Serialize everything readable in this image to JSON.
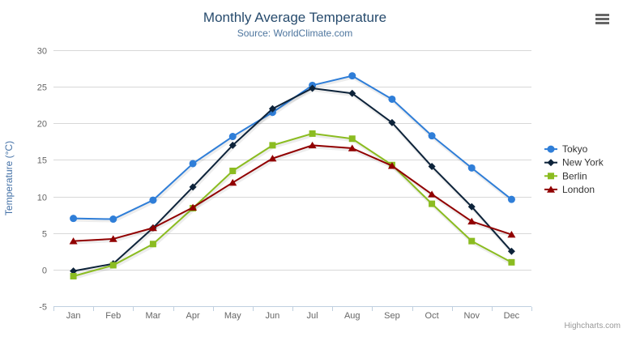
{
  "credits": "Highcharts.com",
  "export_menu": {
    "icon": "hamburger-menu-icon"
  },
  "palette": {
    "title_color": "#274b6d",
    "subtitle_color": "#4d759e",
    "axis_title_color": "#4572a7",
    "axis_label_color": "#666666",
    "legend_text_color": "#333333",
    "grid_color": "#d8d8d8",
    "axis_line_color": "#c0d0e0",
    "credits_color": "#999999"
  },
  "chart_data": {
    "type": "line",
    "title": "Monthly Average Temperature",
    "subtitle": "Source: WorldClimate.com",
    "xlabel": "",
    "ylabel": "Temperature (°C)",
    "ylim": [
      -5,
      30
    ],
    "ytick": 5,
    "grid": true,
    "legend_position": "right",
    "categories": [
      "Jan",
      "Feb",
      "Mar",
      "Apr",
      "May",
      "Jun",
      "Jul",
      "Aug",
      "Sep",
      "Oct",
      "Nov",
      "Dec"
    ],
    "series": [
      {
        "name": "Tokyo",
        "color": "#2f7ed8",
        "marker": "circle",
        "values": [
          7.0,
          6.9,
          9.5,
          14.5,
          18.2,
          21.5,
          25.2,
          26.5,
          23.3,
          18.3,
          13.9,
          9.6
        ]
      },
      {
        "name": "New York",
        "color": "#0d233a",
        "marker": "diamond",
        "values": [
          -0.2,
          0.8,
          5.7,
          11.3,
          17.0,
          22.0,
          24.8,
          24.1,
          20.1,
          14.1,
          8.6,
          2.5
        ]
      },
      {
        "name": "Berlin",
        "color": "#8bbc21",
        "marker": "square",
        "values": [
          -0.9,
          0.6,
          3.5,
          8.4,
          13.5,
          17.0,
          18.6,
          17.9,
          14.3,
          9.0,
          3.9,
          1.0
        ]
      },
      {
        "name": "London",
        "color": "#910000",
        "marker": "triangle",
        "values": [
          3.9,
          4.2,
          5.7,
          8.5,
          11.9,
          15.2,
          17.0,
          16.6,
          14.2,
          10.3,
          6.6,
          4.8
        ]
      }
    ]
  }
}
